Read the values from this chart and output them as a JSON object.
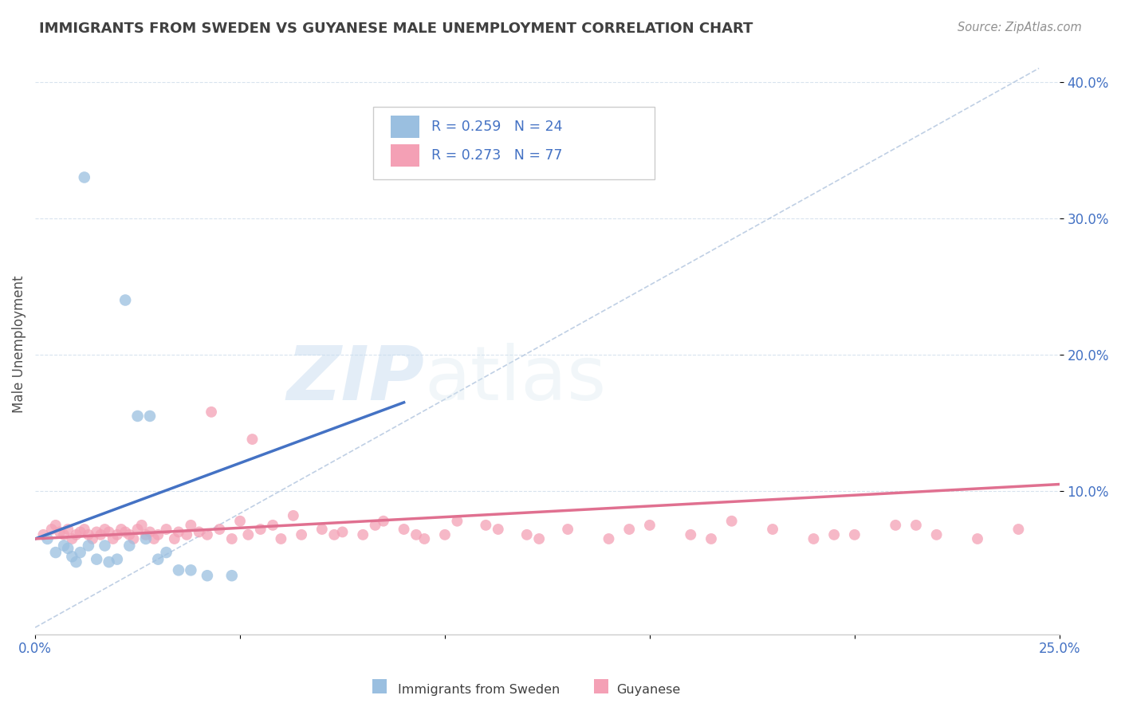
{
  "title": "IMMIGRANTS FROM SWEDEN VS GUYANESE MALE UNEMPLOYMENT CORRELATION CHART",
  "source": "Source: ZipAtlas.com",
  "ylabel": "Male Unemployment",
  "xlim": [
    0.0,
    0.25
  ],
  "ylim": [
    -0.005,
    0.42
  ],
  "y_ticks": [
    0.1,
    0.2,
    0.3,
    0.4
  ],
  "y_tick_labels": [
    "10.0%",
    "20.0%",
    "30.0%",
    "40.0%"
  ],
  "watermark_zip": "ZIP",
  "watermark_atlas": "atlas",
  "color_sweden": "#9ABFE0",
  "color_guyanese": "#F4A0B5",
  "color_sweden_line": "#4472C4",
  "color_guyanese_line": "#E07090",
  "color_axis_blue": "#4472C4",
  "color_title": "#404040",
  "color_source": "#909090",
  "color_legend_text": "#4472C4",
  "diagonal_line_x": [
    0.0,
    0.245
  ],
  "diagonal_line_y": [
    0.0,
    0.41
  ],
  "sweden_x": [
    0.003,
    0.005,
    0.007,
    0.008,
    0.009,
    0.01,
    0.011,
    0.012,
    0.013,
    0.015,
    0.017,
    0.018,
    0.02,
    0.022,
    0.023,
    0.025,
    0.027,
    0.028,
    0.03,
    0.032,
    0.035,
    0.038,
    0.042,
    0.048
  ],
  "sweden_y": [
    0.065,
    0.055,
    0.06,
    0.058,
    0.052,
    0.048,
    0.055,
    0.33,
    0.06,
    0.05,
    0.06,
    0.048,
    0.05,
    0.24,
    0.06,
    0.155,
    0.065,
    0.155,
    0.05,
    0.055,
    0.042,
    0.042,
    0.038,
    0.038
  ],
  "guyanese_x": [
    0.002,
    0.004,
    0.005,
    0.006,
    0.007,
    0.008,
    0.009,
    0.01,
    0.011,
    0.012,
    0.013,
    0.014,
    0.015,
    0.016,
    0.017,
    0.018,
    0.019,
    0.02,
    0.021,
    0.022,
    0.023,
    0.024,
    0.025,
    0.026,
    0.027,
    0.028,
    0.029,
    0.03,
    0.032,
    0.034,
    0.035,
    0.037,
    0.038,
    0.04,
    0.042,
    0.045,
    0.048,
    0.05,
    0.052,
    0.055,
    0.058,
    0.06,
    0.065,
    0.07,
    0.075,
    0.08,
    0.085,
    0.09,
    0.095,
    0.1,
    0.11,
    0.12,
    0.13,
    0.14,
    0.15,
    0.16,
    0.17,
    0.18,
    0.19,
    0.2,
    0.21,
    0.22,
    0.23,
    0.24,
    0.043,
    0.053,
    0.063,
    0.073,
    0.083,
    0.093,
    0.103,
    0.113,
    0.123,
    0.145,
    0.165,
    0.195,
    0.215
  ],
  "guyanese_y": [
    0.068,
    0.072,
    0.075,
    0.07,
    0.068,
    0.072,
    0.065,
    0.068,
    0.07,
    0.072,
    0.068,
    0.065,
    0.07,
    0.068,
    0.072,
    0.07,
    0.065,
    0.068,
    0.072,
    0.07,
    0.068,
    0.065,
    0.072,
    0.075,
    0.068,
    0.07,
    0.065,
    0.068,
    0.072,
    0.065,
    0.07,
    0.068,
    0.075,
    0.07,
    0.068,
    0.072,
    0.065,
    0.078,
    0.068,
    0.072,
    0.075,
    0.065,
    0.068,
    0.072,
    0.07,
    0.068,
    0.078,
    0.072,
    0.065,
    0.068,
    0.075,
    0.068,
    0.072,
    0.065,
    0.075,
    0.068,
    0.078,
    0.072,
    0.065,
    0.068,
    0.075,
    0.068,
    0.065,
    0.072,
    0.158,
    0.138,
    0.082,
    0.068,
    0.075,
    0.068,
    0.078,
    0.072,
    0.065,
    0.072,
    0.065,
    0.068,
    0.075
  ],
  "sweden_line_x0": 0.0,
  "sweden_line_y0": 0.065,
  "sweden_line_x1": 0.09,
  "sweden_line_y1": 0.165,
  "guyanese_line_x0": 0.0,
  "guyanese_line_y0": 0.065,
  "guyanese_line_x1": 0.25,
  "guyanese_line_y1": 0.105
}
